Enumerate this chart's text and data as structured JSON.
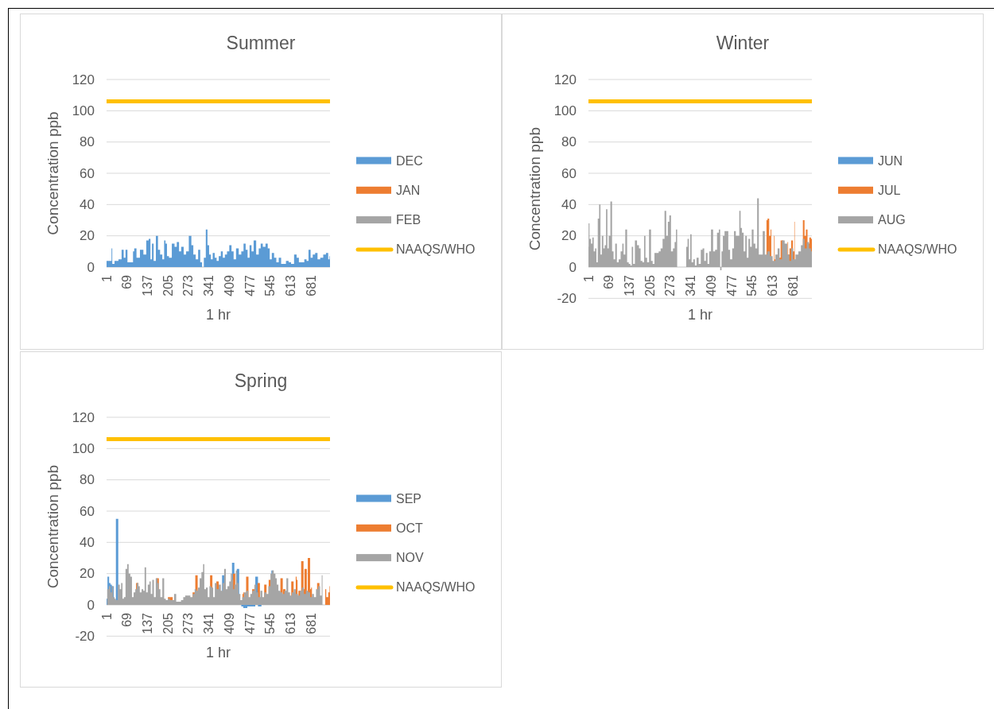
{
  "chart_data": [
    {
      "type": "area",
      "title": "Summer",
      "xlabel": "1 hr",
      "ylabel": "Concentration ppb",
      "xlim": [
        1,
        744
      ],
      "xticks": [
        1,
        69,
        137,
        205,
        273,
        341,
        409,
        477,
        545,
        613,
        681
      ],
      "ylim": [
        0,
        120
      ],
      "yticks": [
        0,
        20,
        40,
        60,
        80,
        100,
        120
      ],
      "grid": "y",
      "legend": "right",
      "series": [
        {
          "name": "DEC",
          "color": "#5b9bd5",
          "x": [
            1,
            16,
            19,
            21,
            34,
            47,
            55,
            61,
            67,
            74,
            88,
            90,
            96,
            105,
            119,
            128,
            138,
            144,
            150,
            154,
            161,
            169,
            175,
            183,
            190,
            195,
            199,
            205,
            212,
            224,
            230,
            239,
            245,
            253,
            262,
            269,
            280,
            286,
            293,
            302,
            309,
            316,
            321,
            328,
            334,
            339,
            345,
            351,
            357,
            364,
            370,
            378,
            384,
            391,
            398,
            405,
            413,
            420,
            427,
            436,
            445,
            453,
            460,
            467,
            473,
            480,
            486,
            494,
            503,
            511,
            516,
            525,
            534,
            540,
            547,
            554,
            562,
            569,
            578,
            585,
            592,
            603,
            610,
            619,
            630,
            636,
            645,
            654,
            663,
            669,
            676,
            683,
            690,
            699,
            706,
            717,
            726,
            735,
            741,
            744
          ],
          "values": [
            4,
            4,
            12,
            2,
            4,
            5,
            11,
            6,
            11,
            3,
            3,
            10,
            12,
            6,
            11,
            8,
            17,
            18,
            5,
            15,
            4,
            20,
            11,
            8,
            5,
            17,
            15,
            7,
            6,
            15,
            13,
            16,
            10,
            13,
            8,
            10,
            20,
            14,
            8,
            5,
            11,
            3,
            0,
            6,
            24,
            14,
            8,
            5,
            9,
            6,
            4,
            7,
            10,
            6,
            8,
            10,
            14,
            10,
            5,
            12,
            8,
            10,
            15,
            11,
            6,
            14,
            10,
            17,
            8,
            12,
            15,
            13,
            15,
            12,
            5,
            9,
            6,
            3,
            6,
            2,
            2,
            4,
            3,
            2,
            8,
            6,
            3,
            3,
            5,
            4,
            11,
            6,
            8,
            9,
            5,
            6,
            8,
            9,
            5,
            7
          ]
        },
        {
          "name": "JAN",
          "color": "#ed7d31"
        },
        {
          "name": "FEB",
          "color": "#a5a5a5"
        },
        {
          "name": "NAAQS/WHO",
          "type": "line",
          "color": "#ffc000",
          "x": [
            1,
            744
          ],
          "values": [
            106,
            106
          ]
        }
      ]
    },
    {
      "type": "area",
      "title": "Winter",
      "xlabel": "1 hr",
      "ylabel": "Concentration ppb",
      "xlim": [
        1,
        744
      ],
      "xticks": [
        1,
        69,
        137,
        205,
        273,
        341,
        409,
        477,
        545,
        613,
        681
      ],
      "ylim": [
        -20,
        120
      ],
      "yticks": [
        -20,
        0,
        20,
        40,
        60,
        80,
        100,
        120
      ],
      "grid": "y",
      "legend": "right",
      "series": [
        {
          "name": "JUN",
          "color": "#5b9bd5"
        },
        {
          "name": "JUL",
          "color": "#ed7d31",
          "x": [
            593,
            600,
            604,
            609,
            613,
            618,
            622,
            631,
            649,
            654,
            663,
            667,
            672,
            678,
            684,
            687,
            693,
            699,
            704,
            711,
            717,
            722,
            726,
            733,
            738,
            744
          ],
          "values": [
            30,
            31,
            20,
            24,
            null,
            20,
            5,
            6,
            17,
            null,
            16,
            8,
            12,
            17,
            10,
            29,
            null,
            null,
            null,
            13,
            30,
            20,
            24,
            15,
            19,
            18
          ]
        },
        {
          "name": "AUG",
          "color": "#a5a5a5",
          "x": [
            1,
            2,
            7,
            12,
            16,
            21,
            25,
            30,
            34,
            39,
            43,
            48,
            53,
            57,
            62,
            66,
            71,
            77,
            82,
            87,
            93,
            98,
            105,
            111,
            116,
            120,
            127,
            132,
            138,
            143,
            147,
            152,
            159,
            166,
            172,
            177,
            184,
            188,
            193,
            199,
            206,
            212,
            217,
            224,
            231,
            238,
            244,
            251,
            257,
            262,
            268,
            272,
            279,
            285,
            290,
            294,
            298,
            324,
            328,
            333,
            337,
            342,
            346,
            353,
            357,
            364,
            371,
            378,
            383,
            389,
            394,
            400,
            405,
            412,
            419,
            425,
            432,
            437,
            441,
            446,
            450,
            457,
            464,
            468,
            476,
            482,
            488,
            494,
            500,
            505,
            509,
            514,
            520,
            525,
            530,
            536,
            541,
            547,
            553,
            559,
            565,
            570,
            577,
            584,
            591,
            600,
            609,
            618,
            627,
            633,
            640,
            649,
            658,
            666,
            672,
            678,
            685,
            694,
            704,
            711,
            717,
            723,
            731,
            738,
            744
          ],
          "values": [
            13,
            28,
            18,
            15,
            19,
            10,
            12,
            3,
            31,
            40,
            8,
            20,
            12,
            14,
            37,
            12,
            20,
            42,
            10,
            5,
            15,
            3,
            5,
            10,
            15,
            8,
            24,
            3,
            2,
            1,
            13,
            2,
            17,
            14,
            12,
            4,
            3,
            20,
            6,
            3,
            24,
            4,
            2,
            9,
            9,
            10,
            12,
            18,
            36,
            20,
            29,
            33,
            10,
            12,
            16,
            24,
            0,
            0,
            13,
            18,
            5,
            21,
            3,
            5,
            1,
            6,
            2,
            11,
            12,
            4,
            9,
            2,
            10,
            24,
            10,
            11,
            22,
            24,
            -2,
            10,
            20,
            23,
            23,
            11,
            5,
            12,
            23,
            20,
            20,
            36,
            25,
            22,
            10,
            20,
            6,
            18,
            13,
            24,
            15,
            12,
            44,
            8,
            8,
            23,
            8,
            10,
            7,
            4,
            8,
            12,
            5,
            17,
            15,
            8,
            4,
            12,
            5,
            8,
            10,
            14,
            18,
            12,
            16,
            12,
            10
          ]
        },
        {
          "name": "NAAQS/WHO",
          "type": "line",
          "color": "#ffc000",
          "x": [
            1,
            744
          ],
          "values": [
            106,
            106
          ]
        }
      ]
    },
    {
      "type": "area",
      "title": "Spring",
      "xlabel": "1 hr",
      "ylabel": "Concentration ppb",
      "xlim": [
        1,
        744
      ],
      "xticks": [
        1,
        69,
        137,
        205,
        273,
        341,
        409,
        477,
        545,
        613,
        681
      ],
      "ylim": [
        -20,
        120
      ],
      "yticks": [
        -20,
        0,
        20,
        40,
        60,
        80,
        100,
        120
      ],
      "grid": "y",
      "legend": "right",
      "series": [
        {
          "name": "SEP",
          "color": "#5b9bd5",
          "x": [
            1,
            7,
            12,
            16,
            21,
            25,
            30,
            33,
            36,
            38,
            43,
            200,
            387,
            389,
            393,
            398,
            402,
            420,
            422,
            427,
            438,
            443,
            449,
            462,
            476,
            489,
            502,
            507,
            516,
            545,
            549,
            556
          ],
          "values": [
            4,
            18,
            14,
            13,
            12,
            12,
            null,
            null,
            55,
            null,
            null,
            null,
            null,
            19,
            null,
            null,
            null,
            null,
            27,
            null,
            23,
            null,
            -1,
            -2,
            -1,
            -1,
            18,
            -1,
            -1,
            null,
            22,
            22
          ]
        },
        {
          "name": "OCT",
          "color": "#ed7d31",
          "x": [
            103,
            107,
            168,
            171,
            174,
            199,
            205,
            221,
            228,
            287,
            291,
            295,
            300,
            303,
            320,
            344,
            349,
            353,
            358,
            370,
            373,
            413,
            416,
            420,
            425,
            428,
            453,
            458,
            465,
            469,
            473,
            489,
            502,
            507,
            512,
            517,
            524,
            529,
            534,
            544,
            550,
            579,
            583,
            588,
            592,
            602,
            614,
            619,
            623,
            630,
            636,
            641,
            643,
            648,
            652,
            655,
            657,
            660,
            663,
            666,
            668,
            671,
            674,
            677,
            678,
            684,
            688,
            699,
            705,
            709,
            712,
            728,
            735,
            741,
            744
          ],
          "values": [
            14,
            null,
            null,
            17,
            null,
            null,
            5,
            5,
            null,
            null,
            8,
            null,
            19,
            null,
            null,
            null,
            19,
            null,
            null,
            15,
            null,
            null,
            null,
            null,
            20,
            null,
            7,
            8,
            null,
            18,
            null,
            10,
            null,
            14,
            null,
            null,
            null,
            13,
            null,
            16,
            null,
            null,
            17,
            null,
            10,
            null,
            null,
            15,
            null,
            18,
            16,
            null,
            9,
            null,
            28,
            null,
            10,
            null,
            23,
            null,
            null,
            null,
            30,
            null,
            10,
            11,
            null,
            null,
            14,
            null,
            null,
            10,
            5,
            8,
            12
          ]
        },
        {
          "name": "NOV",
          "color": "#a5a5a5",
          "x": [
            1,
            5,
            12,
            16,
            21,
            25,
            30,
            34,
            43,
            47,
            52,
            56,
            61,
            67,
            72,
            77,
            83,
            88,
            94,
            99,
            104,
            109,
            114,
            121,
            125,
            130,
            135,
            141,
            146,
            150,
            156,
            161,
            168,
            172,
            177,
            183,
            190,
            195,
            201,
            208,
            214,
            221,
            230,
            235,
            244,
            253,
            259,
            266,
            275,
            284,
            291,
            297,
            302,
            308,
            313,
            320,
            324,
            328,
            335,
            340,
            346,
            353,
            358,
            364,
            370,
            378,
            384,
            389,
            395,
            400,
            406,
            412,
            416,
            420,
            424,
            428,
            434,
            437,
            443,
            449,
            455,
            462,
            469,
            476,
            482,
            489,
            496,
            502,
            509,
            516,
            522,
            529,
            535,
            543,
            549,
            554,
            560,
            565,
            569,
            576,
            583,
            589,
            596,
            602,
            608,
            614,
            620,
            627,
            634,
            641,
            647,
            654,
            660,
            668,
            675,
            681,
            687,
            694,
            701,
            708,
            714,
            719
          ],
          "values": [
            0,
            10,
            12,
            8,
            12,
            5,
            4,
            3,
            13,
            10,
            14,
            4,
            5,
            23,
            26,
            20,
            18,
            5,
            8,
            10,
            14,
            12,
            8,
            10,
            9,
            24,
            8,
            13,
            15,
            7,
            16,
            5,
            17,
            14,
            10,
            5,
            17,
            4,
            3,
            4,
            3,
            3,
            7,
            2,
            2,
            3,
            5,
            6,
            6,
            5,
            7,
            10,
            9,
            11,
            17,
            21,
            26,
            10,
            11,
            5,
            12,
            11,
            5,
            14,
            10,
            13,
            9,
            14,
            23,
            10,
            12,
            15,
            20,
            16,
            10,
            13,
            22,
            14,
            7,
            3,
            5,
            8,
            9,
            5,
            7,
            9,
            13,
            8,
            5,
            9,
            5,
            8,
            7,
            12,
            20,
            22,
            20,
            17,
            13,
            9,
            8,
            7,
            9,
            17,
            8,
            6,
            8,
            10,
            7,
            6,
            9,
            11,
            7,
            9,
            8,
            5,
            7,
            5,
            10,
            12,
            6,
            19
          ]
        },
        {
          "name": "NAAQS/WHO",
          "type": "line",
          "color": "#ffc000",
          "x": [
            1,
            744
          ],
          "values": [
            106,
            106
          ]
        }
      ]
    }
  ]
}
